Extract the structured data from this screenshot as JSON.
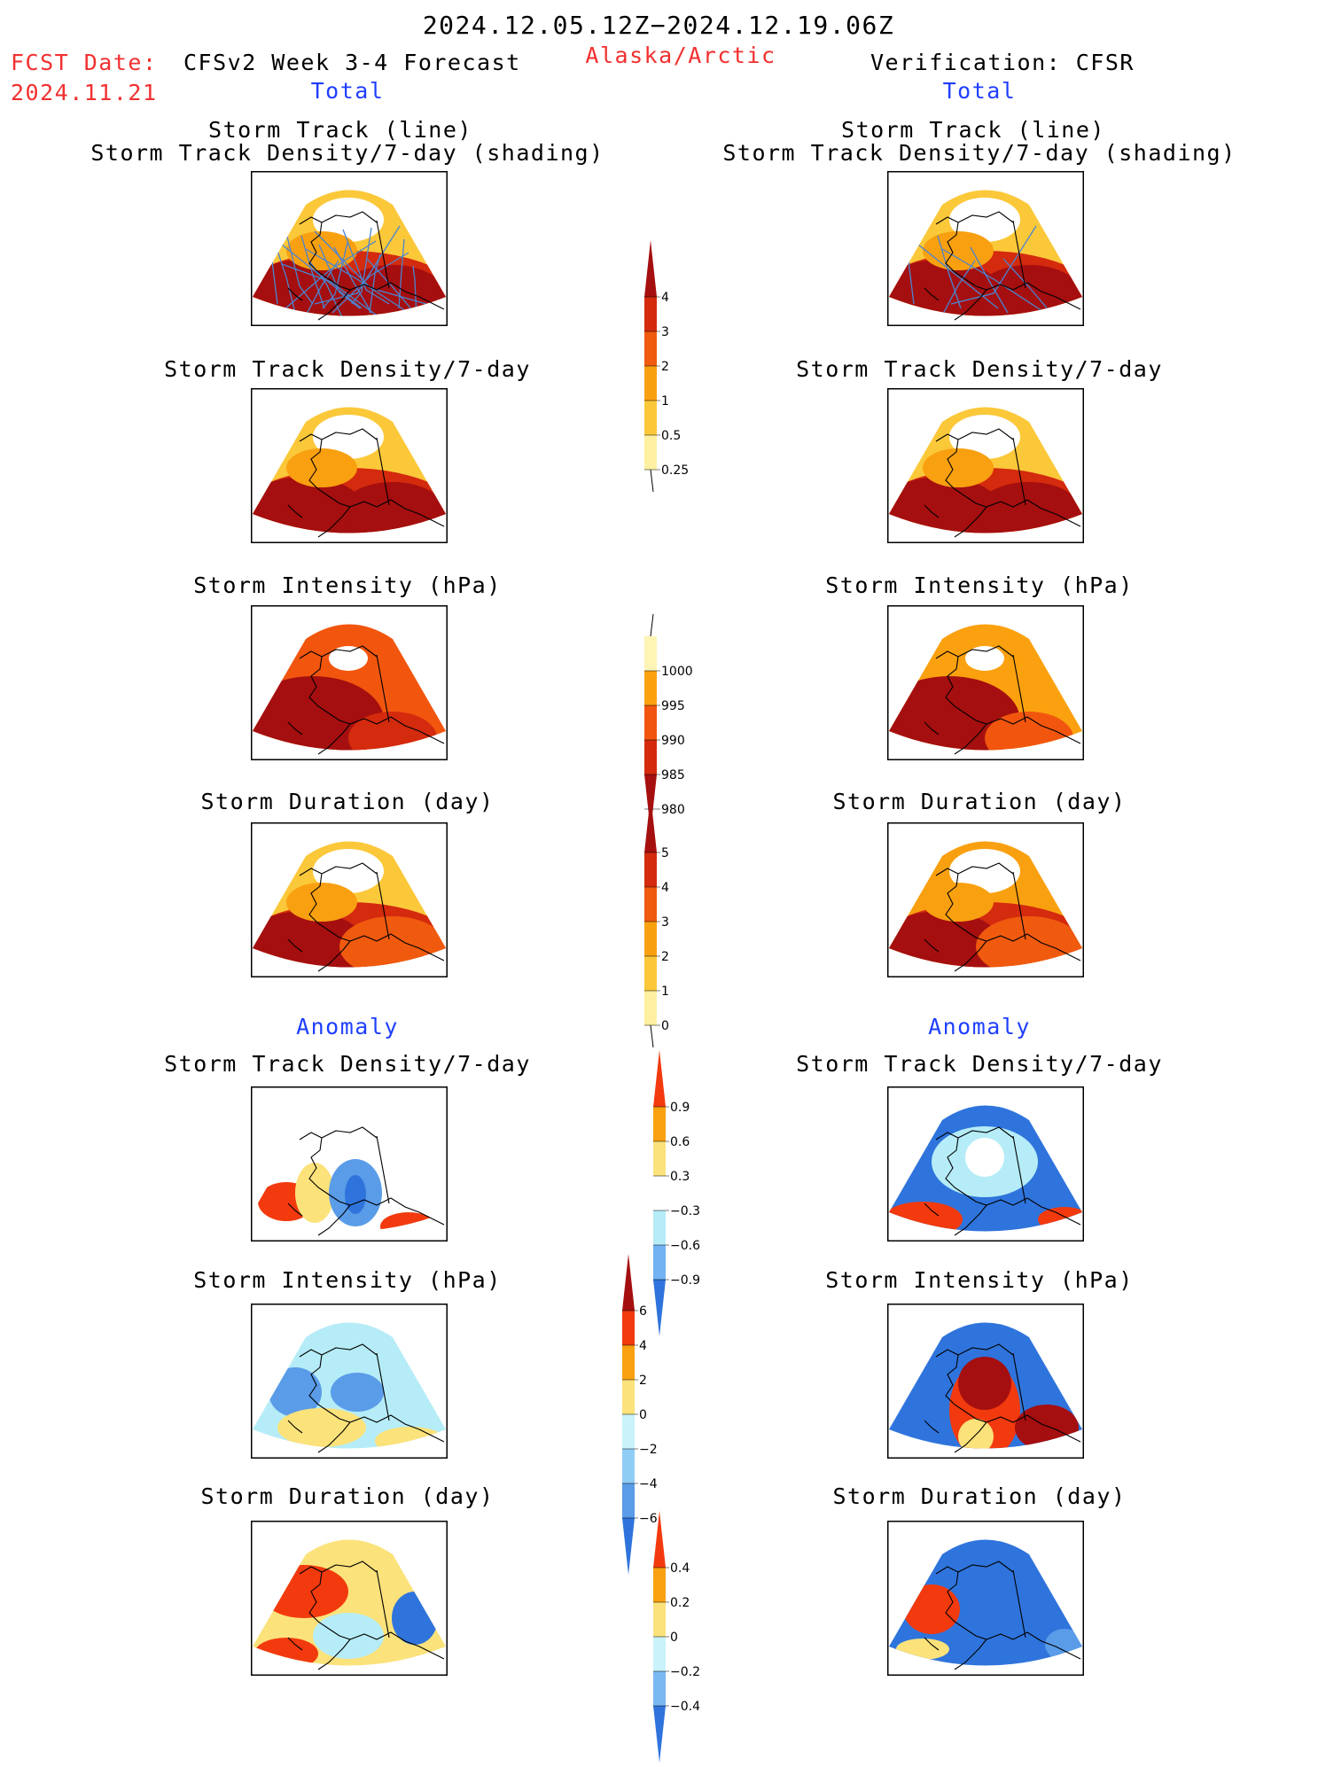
{
  "header": {
    "period": "2024.12.05.12Z−2024.12.19.06Z",
    "fcst_label": "FCST Date:",
    "fcst_date": "2024.11.21",
    "model_title": "CFSv2 Week 3-4 Forecast",
    "region": "Alaska/Arctic",
    "verification_title": "Verification: CFSR"
  },
  "sections": {
    "left_total": "Total",
    "right_total": "Total",
    "left_anomaly": "Anomaly",
    "right_anomaly": "Anomaly"
  },
  "panel_titles": {
    "track_line": "Storm Track (line)",
    "track_density_shading": "Storm Track Density/7-day (shading)",
    "track_density": "Storm Track Density/7-day",
    "intensity": "Storm Intensity (hPa)",
    "duration": "Storm Duration (day)"
  },
  "colorbars": {
    "density": {
      "labels": [
        "4",
        "3",
        "2",
        "1",
        "0.5",
        "0.25"
      ],
      "colors": [
        "#a50f0f",
        "#d42a0e",
        "#f05a0f",
        "#f9a010",
        "#fbc83a",
        "#fef0a0"
      ]
    },
    "intensity": {
      "labels": [
        "1000",
        "995",
        "990",
        "985",
        "980"
      ],
      "colors": [
        "#fef4b5",
        "#fba10f",
        "#f2560e",
        "#d42a0e",
        "#a50f0f"
      ]
    },
    "duration": {
      "labels": [
        "5",
        "4",
        "3",
        "2",
        "1",
        "0"
      ],
      "colors": [
        "#a50f0f",
        "#d42a0e",
        "#f05a0f",
        "#f9a010",
        "#fbc83a",
        "#fef0a0"
      ]
    },
    "density_anom": {
      "labels": [
        "0.9",
        "0.6",
        "0.3",
        "−0.3",
        "−0.6",
        "−0.9"
      ],
      "colors": [
        "#f23a0e",
        "#f9a010",
        "#fbe27a",
        "#ffffff",
        "#b5ecf7",
        "#70b2f2",
        "#2f74dc"
      ]
    },
    "intensity_anom": {
      "labels": [
        "6",
        "4",
        "2",
        "0",
        "−2",
        "−4",
        "−6"
      ],
      "colors": [
        "#a50f0f",
        "#f23a0e",
        "#f9a010",
        "#fbe27a",
        "#c9f2fa",
        "#90cdf5",
        "#5a9ce8",
        "#2f74dc"
      ]
    },
    "duration_anom": {
      "labels": [
        "0.4",
        "0.2",
        "0",
        "−0.2",
        "−0.4"
      ],
      "colors": [
        "#f23a0e",
        "#f9a010",
        "#fbe27a",
        "#c9f2fa",
        "#7ab8f2",
        "#2f74dc"
      ]
    }
  },
  "maps": {
    "left": [
      "track",
      "density",
      "intensity",
      "duration",
      "density_anom",
      "intensity_anom",
      "duration_anom"
    ],
    "right": [
      "track",
      "density",
      "intensity",
      "duration",
      "density_anom",
      "intensity_anom",
      "duration_anom"
    ]
  }
}
